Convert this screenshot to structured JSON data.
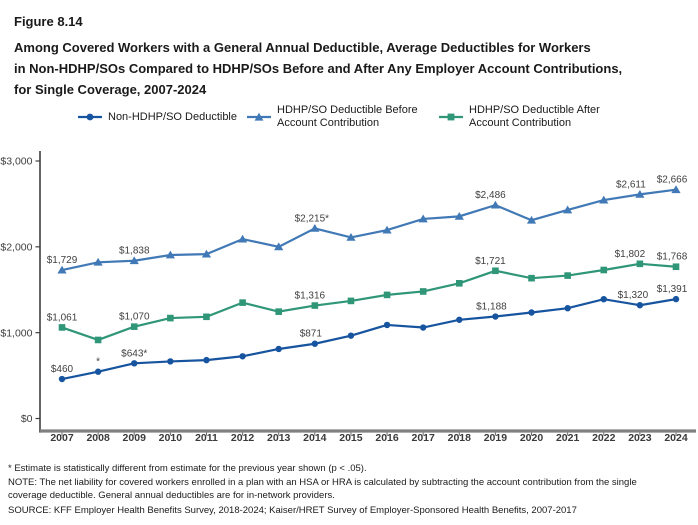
{
  "figure": {
    "label": "Figure 8.14",
    "title_lines": [
      "Among Covered Workers with a General Annual Deductible, Average Deductibles for Workers",
      "in Non-HDHP/SOs Compared to HDHP/SOs Before and After Any Employer Account Contributions,",
      "for Single Coverage, 2007-2024"
    ]
  },
  "chart_data": {
    "type": "line",
    "title": "Among Covered Workers with a General Annual Deductible, Average Deductibles for Workers in Non-HDHP/SOs Compared to HDHP/SOs Before and After Any Employer Account Contributions, for Single Coverage, 2007-2024",
    "xlabel": "",
    "ylabel": "",
    "grid": false,
    "legend_position": "top",
    "ylim": [
      0,
      3000
    ],
    "yticks": [
      {
        "value": 3000,
        "label": "$3,000"
      },
      {
        "value": 2000,
        "label": "$2,000"
      },
      {
        "value": 1000,
        "label": "$1,000"
      },
      {
        "value": 0,
        "label": "$0"
      }
    ],
    "x": [
      2007,
      2008,
      2009,
      2010,
      2011,
      2012,
      2013,
      2014,
      2015,
      2016,
      2017,
      2018,
      2019,
      2020,
      2021,
      2022,
      2023,
      2024
    ],
    "series": [
      {
        "id": "non-hdhp-so-deductible",
        "name": "Non-HDHP/SO Deductible",
        "color": "#17549F",
        "marker": "circle",
        "line_style": "solid",
        "values": [
          460,
          545,
          643,
          665,
          680,
          725,
          810,
          871,
          965,
          1090,
          1060,
          1150,
          1188,
          1235,
          1285,
          1390,
          1320,
          1391
        ],
        "labels": [
          "$460",
          "*",
          "$643*",
          null,
          null,
          null,
          null,
          {
            "t": "$871",
            "dx": -4
          },
          null,
          null,
          null,
          null,
          {
            "t": "$1,188",
            "dx": -4
          },
          null,
          null,
          null,
          {
            "t": "$1,320",
            "dx": -7
          },
          {
            "t": "$1,391",
            "dx": -4
          }
        ]
      },
      {
        "id": "hdhp-so-deductible-before-account-contribution",
        "name": "HDHP/SO Deductible Before Account Contribution",
        "color": "#4179B6",
        "marker": "triangle",
        "line_style": "solid",
        "values": [
          1729,
          1820,
          1838,
          1905,
          1915,
          2090,
          2000,
          2215,
          2110,
          2195,
          2325,
          2355,
          2486,
          2310,
          2430,
          2545,
          2611,
          2666
        ],
        "labels": [
          "$1,729",
          null,
          "$1,838",
          null,
          null,
          null,
          null,
          {
            "t": "$2,215*",
            "dx": -3
          },
          null,
          null,
          null,
          null,
          {
            "t": "$2,486",
            "dx": -5
          },
          null,
          null,
          null,
          {
            "t": "$2,611",
            "dx": -9
          },
          {
            "t": "$2,666",
            "dx": -4
          }
        ]
      },
      {
        "id": "hdhp-so-deductible-after-account-contribution",
        "name": "HDHP/SO Deductible After Account Contribution",
        "color": "#2F9677",
        "marker": "square",
        "line_style": "solid",
        "values": [
          1061,
          915,
          1070,
          1170,
          1185,
          1350,
          1245,
          1316,
          1370,
          1440,
          1480,
          1575,
          1721,
          1635,
          1665,
          1730,
          1802,
          1768
        ],
        "labels": [
          "$1,061",
          null,
          "$1,070",
          null,
          null,
          null,
          null,
          {
            "t": "$1,316",
            "dx": -5
          },
          null,
          null,
          null,
          null,
          {
            "t": "$1,721",
            "dx": -5
          },
          null,
          null,
          null,
          {
            "t": "$1,802",
            "dx": -10
          },
          {
            "t": "$1,768",
            "dx": -4
          }
        ]
      }
    ]
  },
  "footnotes": [
    "* Estimate is statistically different from estimate for the previous year shown (p < .05).",
    "NOTE: The net liability for covered workers enrolled in a plan with an HSA or HRA is calculated by subtracting the account contribution from the single coverage deductible. General annual deductibles are for in-network providers.",
    "SOURCE: KFF Employer Health Benefits Survey, 2018-2024; Kaiser/HRET Survey of Employer-Sponsored Health Benefits, 2007-2017"
  ]
}
